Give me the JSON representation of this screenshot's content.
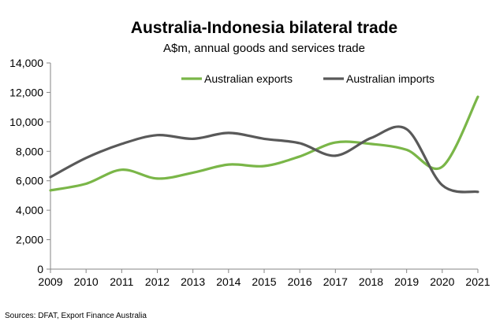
{
  "chart_data": {
    "type": "line",
    "title": "Australia-Indonesia bilateral trade",
    "subtitle": "A$m, annual goods and services trade",
    "xlabel": "",
    "ylabel": "",
    "x": [
      2009,
      2010,
      2011,
      2012,
      2013,
      2014,
      2015,
      2016,
      2017,
      2018,
      2019,
      2020,
      2021
    ],
    "x_tick_labels": [
      "2009",
      "2010",
      "2011",
      "2012",
      "2013",
      "2014",
      "2015",
      "2016",
      "2017",
      "2018",
      "2019",
      "2020",
      "2021"
    ],
    "ylim": [
      0,
      14000
    ],
    "y_ticks": [
      0,
      2000,
      4000,
      6000,
      8000,
      10000,
      12000,
      14000
    ],
    "y_tick_labels": [
      "0",
      "2,000",
      "4,000",
      "6,000",
      "8,000",
      "10,000",
      "12,000",
      "14,000"
    ],
    "grid": false,
    "legend_position": "top",
    "series": [
      {
        "name": "Australian exports",
        "color": "#7ab648",
        "values": [
          5350,
          5800,
          6750,
          6150,
          6550,
          7100,
          7000,
          7650,
          8600,
          8500,
          8100,
          6950,
          11700
        ]
      },
      {
        "name": "Australian imports",
        "color": "#595959",
        "values": [
          6250,
          7550,
          8500,
          9100,
          8850,
          9250,
          8850,
          8550,
          7700,
          8900,
          9500,
          5700,
          5250
        ]
      }
    ],
    "source": "Sources: DFAT, Export Finance Australia"
  }
}
